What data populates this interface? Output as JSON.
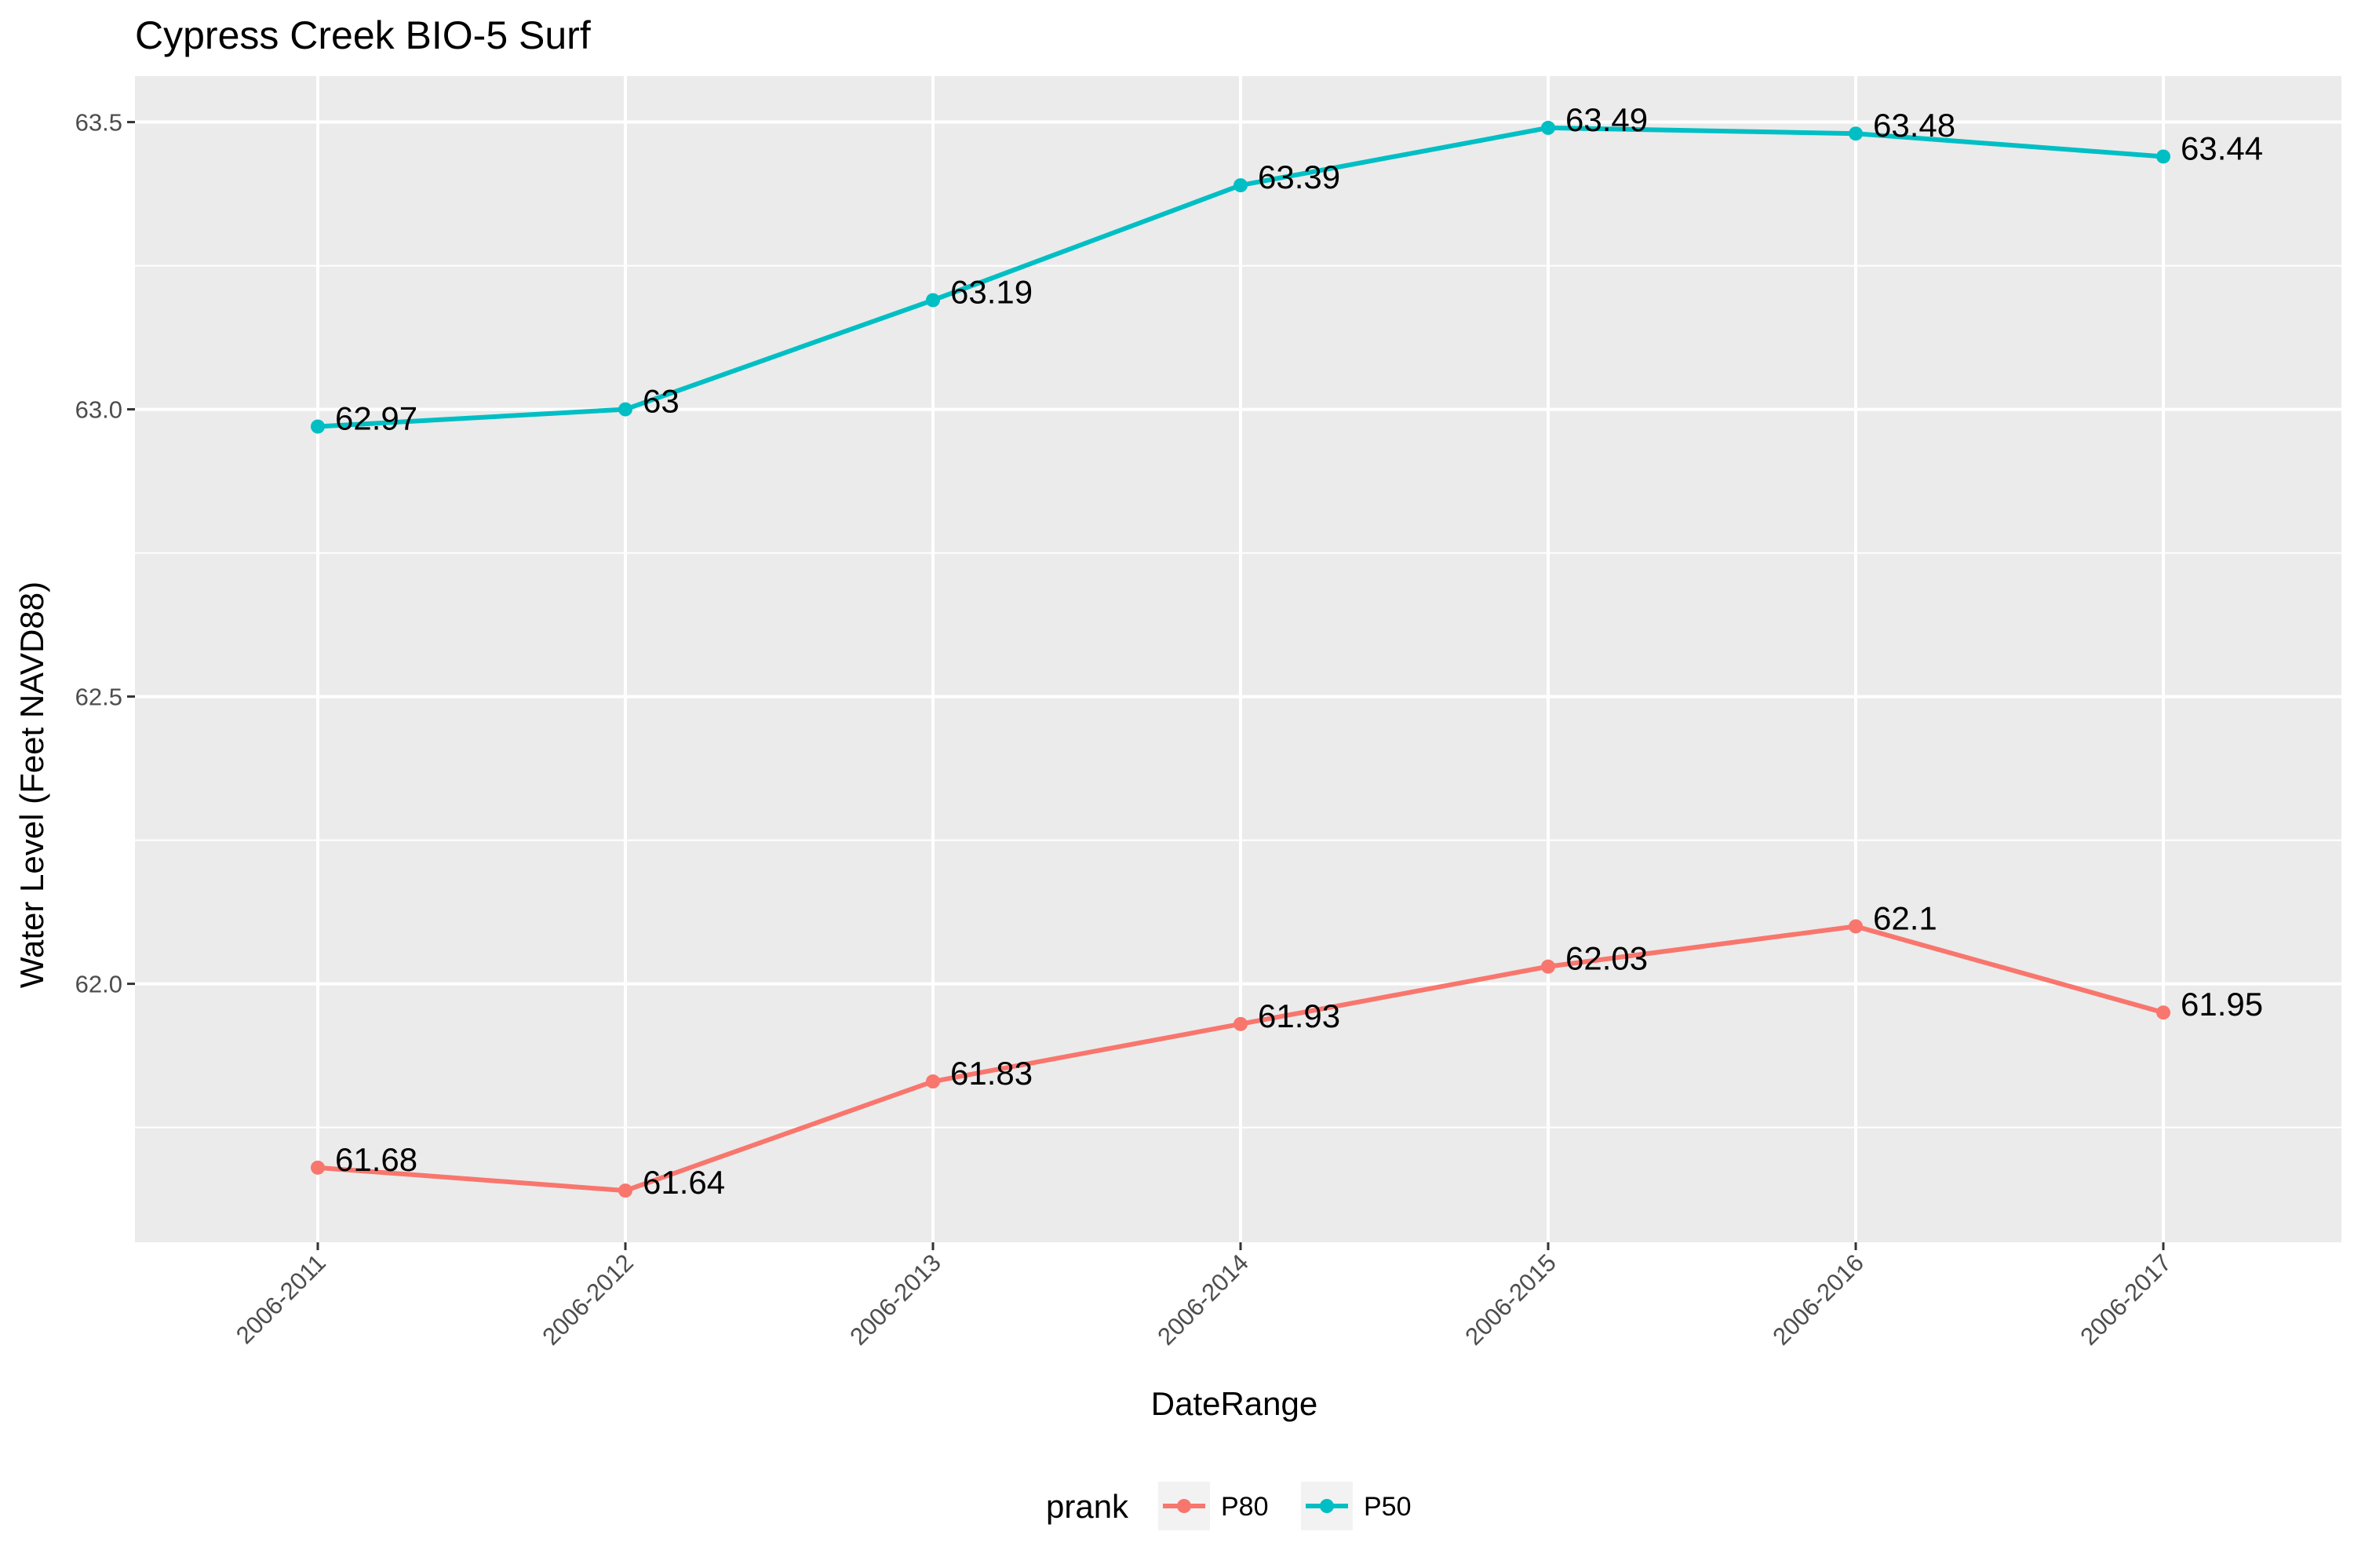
{
  "chart_data": {
    "type": "line",
    "title": "Cypress Creek BIO-5 Surf",
    "xlabel": "DateRange",
    "ylabel": "Water Level (Feet NAVD88)",
    "categories": [
      "2006-2011",
      "2006-2012",
      "2006-2013",
      "2006-2014",
      "2006-2015",
      "2006-2016",
      "2006-2017"
    ],
    "ylim": [
      61.55,
      63.58
    ],
    "yticks": [
      62.0,
      62.5,
      63.0,
      63.5
    ],
    "ytick_labels": [
      "62.0",
      "62.5",
      "63.0",
      "63.5"
    ],
    "grid": true,
    "legend": {
      "title": "prank",
      "position": "bottom"
    },
    "series": [
      {
        "name": "P80",
        "color": "#F8766D",
        "values": [
          61.68,
          61.64,
          61.83,
          61.93,
          62.03,
          62.1,
          61.95
        ],
        "labels": [
          "61.68",
          "61.64",
          "61.83",
          "61.93",
          "62.03",
          "62.1",
          "61.95"
        ]
      },
      {
        "name": "P50",
        "color": "#00BFC4",
        "values": [
          62.97,
          63.0,
          63.19,
          63.39,
          63.49,
          63.48,
          63.44
        ],
        "labels": [
          "62.97",
          "63",
          "63.19",
          "63.39",
          "63.49",
          "63.48",
          "63.44"
        ]
      }
    ]
  }
}
